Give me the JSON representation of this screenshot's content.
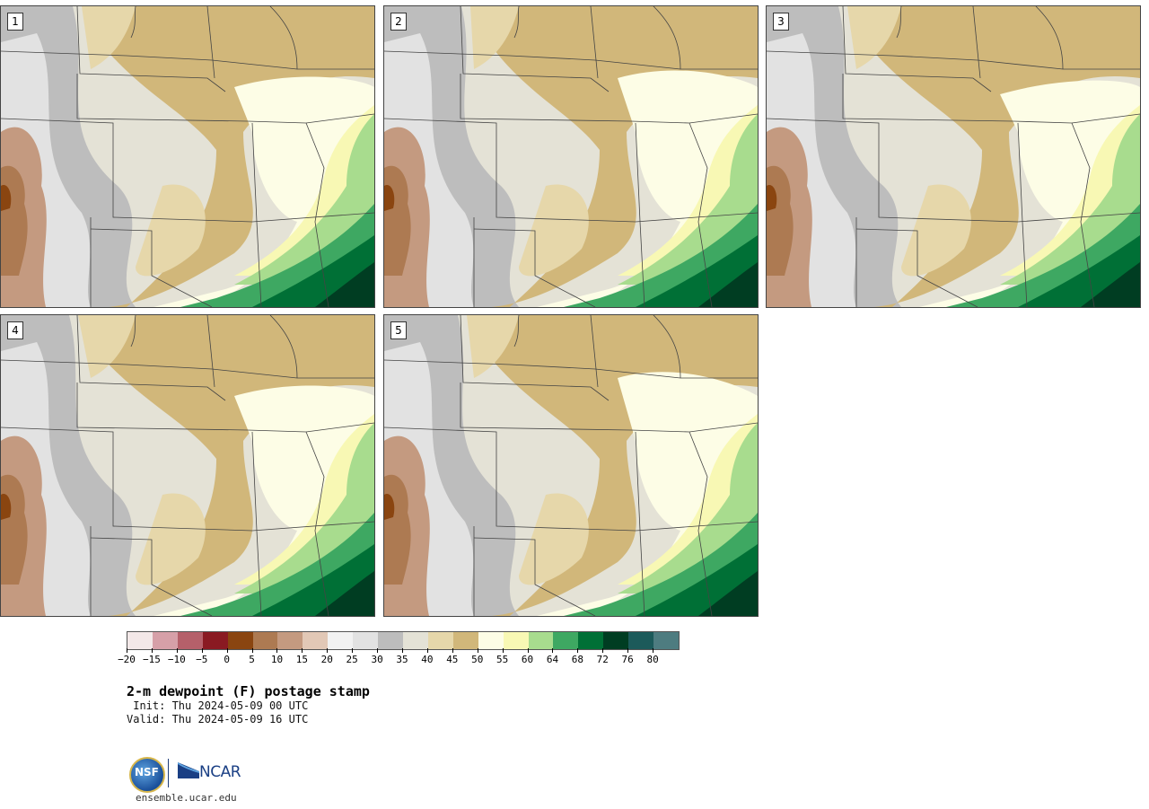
{
  "panels": [
    {
      "label": "1"
    },
    {
      "label": "2"
    },
    {
      "label": "3"
    },
    {
      "label": "4"
    },
    {
      "label": "5"
    }
  ],
  "legend": {
    "colors": [
      "#f3e8e8",
      "#d6a0a8",
      "#b5606a",
      "#8a1a22",
      "#8a4510",
      "#ad7a52",
      "#c49a80",
      "#e2c8b6",
      "#f2f2f2",
      "#e2e2e2",
      "#bdbdbd",
      "#e4e2d6",
      "#e6d7aa",
      "#d1b77a",
      "#fdfde6",
      "#f8f8b4",
      "#a8dc8e",
      "#3ea862",
      "#007036",
      "#003d22",
      "#1c5a5a",
      "#4e7c80"
    ],
    "tick_labels": [
      "−20",
      "−15",
      "−10",
      "−5",
      "0",
      "5",
      "10",
      "15",
      "20",
      "25",
      "30",
      "35",
      "40",
      "45",
      "50",
      "55",
      "60",
      "64",
      "68",
      "72",
      "76",
      "80"
    ]
  },
  "title": "2-m dewpoint (F) postage stamp",
  "init": " Init: Thu 2024-05-09 00 UTC",
  "valid": "Valid: Thu 2024-05-09 16 UTC",
  "logos": {
    "nsf": "NSF",
    "ncar": "NCAR"
  },
  "url": "ensemble.ucar.edu"
}
